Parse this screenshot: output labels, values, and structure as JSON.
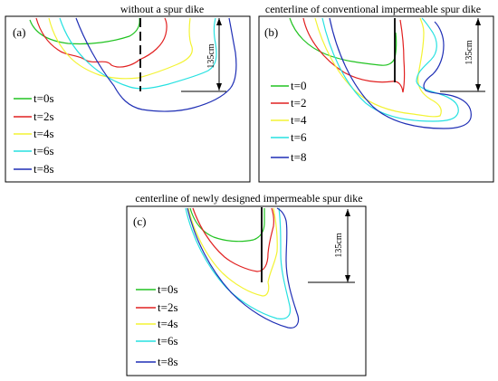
{
  "figure": {
    "panel_a": {
      "label": "(a)",
      "title": "without a spur dike",
      "scale_label": "135cm",
      "legend": [
        "t=0s",
        "t=2s",
        "t=4s",
        "t=6s",
        "t=8s"
      ]
    },
    "panel_b": {
      "label": "(b)",
      "title": "centerline of conventional impermeable spur dike",
      "scale_label": "135cm",
      "legend": [
        "t=0",
        "t=2",
        "t=4",
        "t=6",
        "t=8"
      ]
    },
    "panel_c": {
      "label": "(c)",
      "title": "centerline of newly designed impermeable spur dike",
      "scale_label": "135cm",
      "legend": [
        "t=0s",
        "t=2s",
        "t=4s",
        "t=6s",
        "t=8s"
      ]
    },
    "series_colors": [
      "#22c322",
      "#e12020",
      "#f3f334",
      "#27e1e1",
      "#1f2fb5"
    ]
  }
}
